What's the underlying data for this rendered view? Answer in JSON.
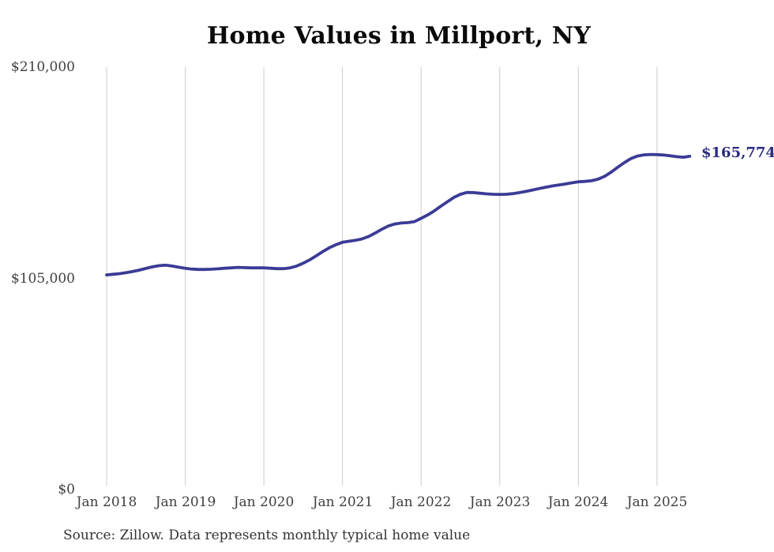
{
  "title": "Home Values in Millport, NY",
  "source_note": "Source: Zillow. Data represents monthly typical home value",
  "colors": {
    "line": "#3b3b96",
    "end_label": "#2b2b7e",
    "gridline": "#cccccc",
    "tick_text": "#3f3f3f",
    "title_text": "#0a0a0a"
  },
  "chart_data": {
    "type": "line",
    "title": "Home Values in Millport, NY",
    "xlabel": "",
    "ylabel": "",
    "x_start": "Jan 2018",
    "x_end": "Jun 2025",
    "frequency": "monthly",
    "x_tick_labels": [
      "Jan 2018",
      "Jan 2019",
      "Jan 2020",
      "Jan 2021",
      "Jan 2022",
      "Jan 2023",
      "Jan 2024",
      "Jan 2025"
    ],
    "y_tick_labels": [
      "$0",
      "$105,000",
      "$210,000"
    ],
    "y_tick_values": [
      0,
      105000,
      210000
    ],
    "ylim": [
      0,
      210000
    ],
    "grid": "vertical-only",
    "legend": "none",
    "end_label": "$165,774",
    "end_value": 165774,
    "series": [
      {
        "name": "Typical home value",
        "values": [
          106800,
          107100,
          107400,
          107900,
          108500,
          109200,
          110000,
          110800,
          111400,
          111600,
          111200,
          110600,
          110100,
          109700,
          109500,
          109500,
          109600,
          109800,
          110100,
          110300,
          110500,
          110400,
          110300,
          110300,
          110300,
          110100,
          109900,
          109900,
          110300,
          111200,
          112600,
          114300,
          116300,
          118400,
          120300,
          121800,
          123000,
          123500,
          124000,
          124700,
          125900,
          127600,
          129500,
          131100,
          132100,
          132600,
          132800,
          133300,
          134900,
          136600,
          138600,
          140900,
          143100,
          145300,
          146900,
          147800,
          147700,
          147400,
          147100,
          146900,
          146800,
          146900,
          147200,
          147700,
          148300,
          149000,
          149700,
          150400,
          151000,
          151500,
          152000,
          152600,
          153100,
          153300,
          153600,
          154400,
          155800,
          157900,
          160300,
          162600,
          164600,
          165900,
          166500,
          166700,
          166600,
          166400,
          166000,
          165600,
          165300,
          165774
        ]
      }
    ]
  }
}
